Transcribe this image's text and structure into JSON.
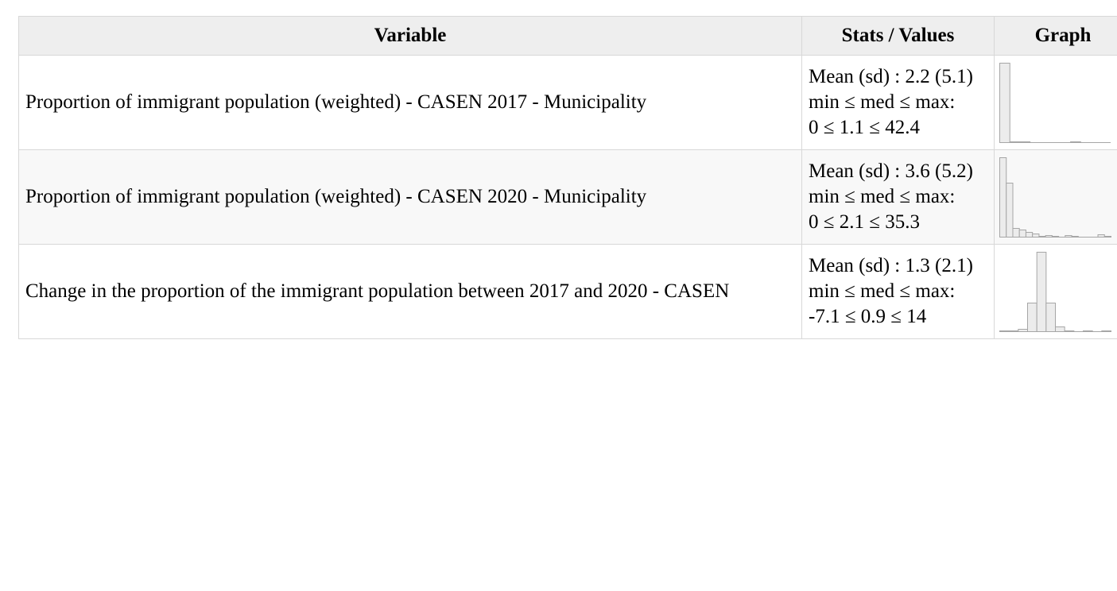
{
  "table": {
    "headers": {
      "variable": "Variable",
      "stats": "Stats / Values",
      "graph": "Graph"
    },
    "rows": [
      {
        "variable": "Proportion of immigrant population (weighted) - CASEN 2017 - Municipality",
        "stats_line1": "Mean (sd) : 2.2 (5.1)",
        "stats_line2": "min ≤ med ≤ max:",
        "stats_line3": "0 ≤ 1.1 ≤ 42.4"
      },
      {
        "variable": "Proportion of immigrant population (weighted) - CASEN 2020 - Municipality",
        "stats_line1": "Mean (sd) : 3.6 (5.2)",
        "stats_line2": "min ≤ med ≤ max:",
        "stats_line3": "0 ≤ 2.1 ≤ 35.3"
      },
      {
        "variable": "Change in the proportion of the immigrant population between 2017 and 2020 - CASEN",
        "stats_line1": "Mean (sd) : 1.3 (2.1)",
        "stats_line2": "min ≤ med ≤ max:",
        "stats_line3": "-7.1 ≤ 0.9 ≤ 14"
      }
    ]
  },
  "chart_data": [
    {
      "type": "bar",
      "values": [
        100,
        1,
        1,
        0,
        0,
        0,
        0,
        1,
        0,
        0,
        0
      ]
    },
    {
      "type": "bar",
      "values": [
        100,
        68,
        11,
        9,
        6,
        4,
        1,
        2,
        1,
        0,
        2,
        1,
        0,
        0,
        0,
        3,
        1
      ]
    },
    {
      "type": "bar",
      "values": [
        1,
        1,
        3,
        36,
        100,
        36,
        6,
        1,
        0,
        1,
        0,
        1
      ]
    }
  ],
  "colors": {
    "header_bg": "#eeeeee",
    "striped_row_bg": "#f8f8f8",
    "border": "#d8d8d8",
    "bar_fill": "#ececec",
    "bar_stroke": "#a6a6a6"
  }
}
